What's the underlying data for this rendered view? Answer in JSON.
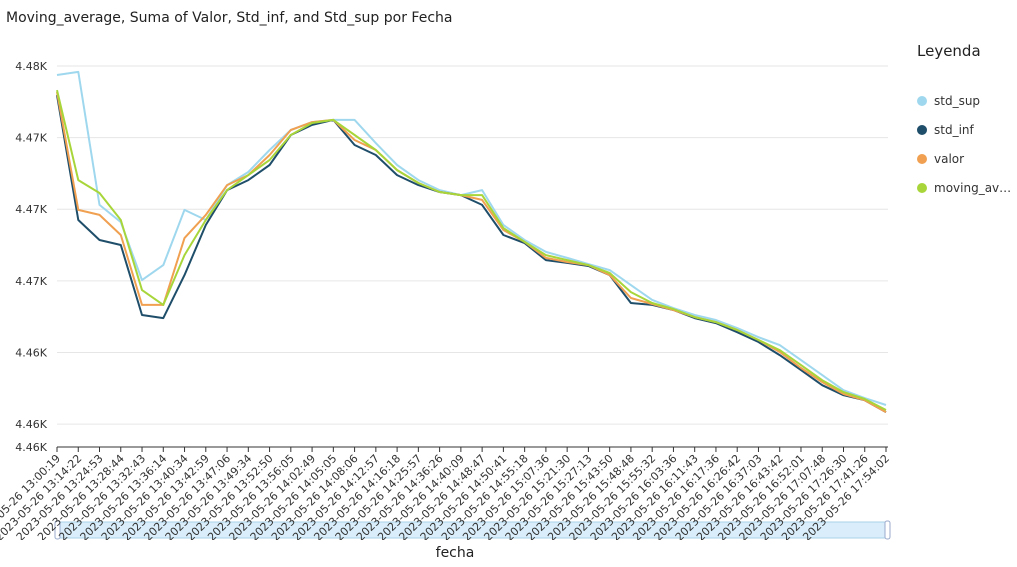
{
  "chart_data": {
    "type": "line",
    "title": "Moving_average, Suma of Valor, Std_inf, and Std_sup por Fecha",
    "legend_title": "Leyenda",
    "legend_position": "right",
    "xlabel": "fecha",
    "grid": true,
    "categories": [
      "2023-05-26 13:00:19",
      "2023-05-26 13:14:22",
      "2023-05-26 13:24:53",
      "2023-05-26 13:28:44",
      "2023-05-26 13:32:43",
      "2023-05-26 13:36:14",
      "2023-05-26 13:40:34",
      "2023-05-26 13:42:59",
      "2023-05-26 13:47:06",
      "2023-05-26 13:49:34",
      "2023-05-26 13:52:50",
      "2023-05-26 13:56:05",
      "2023-05-26 14:02:49",
      "2023-05-26 14:05:05",
      "2023-05-26 14:08:06",
      "2023-05-26 14:12:57",
      "2023-05-26 14:16:18",
      "2023-05-26 14:25:57",
      "2023-05-26 14:36:26",
      "2023-05-26 14:40:09",
      "2023-05-26 14:48:47",
      "2023-05-26 14:50:41",
      "2023-05-26 14:55:18",
      "2023-05-26 15:07:36",
      "2023-05-26 15:21:30",
      "2023-05-26 15:27:13",
      "2023-05-26 15:43:50",
      "2023-05-26 15:48:48",
      "2023-05-26 15:55:32",
      "2023-05-26 16:03:36",
      "2023-05-26 16:11:43",
      "2023-05-26 16:17:36",
      "2023-05-26 16:26:42",
      "2023-05-26 16:37:03",
      "2023-05-26 16:43:42",
      "2023-05-26 16:52:01",
      "2023-05-26 17:07:48",
      "2023-05-26 17:26:30",
      "2023-05-26 17:41:26",
      "2023-05-26 17:54:02"
    ],
    "ylim": [
      4460.04,
      4476.25
    ],
    "yticks": [
      {
        "value": 4460.04,
        "label": "4.46K"
      },
      {
        "value": 4461,
        "label": "4.46K"
      },
      {
        "value": 4464,
        "label": "4.46K"
      },
      {
        "value": 4467,
        "label": "4.47K"
      },
      {
        "value": 4470,
        "label": "4.47K"
      },
      {
        "value": 4473,
        "label": "4.47K"
      },
      {
        "value": 4476,
        "label": "4.48K"
      }
    ],
    "series": [
      {
        "name": "std_sup",
        "color": "#9fd8ee",
        "values": [
          4475.62,
          4475.75,
          4470.18,
          4469.46,
          4467.03,
          4467.66,
          4469.97,
          4469.55,
          4471.01,
          4471.56,
          4472.48,
          4473.32,
          4473.65,
          4473.74,
          4473.74,
          4472.77,
          4471.85,
          4471.22,
          4470.8,
          4470.59,
          4470.8,
          4469.34,
          4468.71,
          4468.21,
          4467.96,
          4467.7,
          4467.45,
          4466.82,
          4466.2,
          4465.86,
          4465.57,
          4465.36,
          4465.02,
          4464.64,
          4464.31,
          4463.68,
          4463.05,
          4462.42,
          4462.09,
          4461.8
        ]
      },
      {
        "name": "std_inf",
        "color": "#1f4e6a",
        "values": [
          4474.78,
          4469.55,
          4468.71,
          4468.5,
          4465.57,
          4465.44,
          4467.24,
          4469.34,
          4470.8,
          4471.22,
          4471.85,
          4473.11,
          4473.53,
          4473.74,
          4472.69,
          4472.27,
          4471.43,
          4471.01,
          4470.72,
          4470.59,
          4470.18,
          4468.92,
          4468.58,
          4467.87,
          4467.75,
          4467.62,
          4467.24,
          4466.07,
          4465.99,
          4465.78,
          4465.44,
          4465.23,
          4464.85,
          4464.44,
          4463.89,
          4463.26,
          4462.63,
          4462.21,
          4462.0,
          4461.5
        ]
      },
      {
        "name": "valor",
        "color": "#f0a050",
        "values": [
          4474.91,
          4469.97,
          4469.76,
          4468.92,
          4465.99,
          4465.99,
          4468.79,
          4469.76,
          4471.01,
          4471.43,
          4472.27,
          4473.32,
          4473.65,
          4473.74,
          4472.9,
          4472.48,
          4471.64,
          4471.1,
          4470.72,
          4470.59,
          4470.39,
          4469.13,
          4468.63,
          4467.96,
          4467.79,
          4467.66,
          4467.24,
          4466.28,
          4466.03,
          4465.78,
          4465.48,
          4465.27,
          4464.94,
          4464.52,
          4464.02,
          4463.35,
          4462.76,
          4462.26,
          4462.0,
          4461.5
        ]
      },
      {
        "name": "moving_average",
        "color": "#a8d63a",
        "values": [
          4474.99,
          4471.22,
          4470.68,
          4469.55,
          4466.61,
          4465.99,
          4468.08,
          4469.55,
          4470.8,
          4471.43,
          4472.06,
          4473.11,
          4473.61,
          4473.74,
          4473.11,
          4472.48,
          4471.64,
          4471.1,
          4470.72,
          4470.59,
          4470.59,
          4469.21,
          4468.63,
          4468.08,
          4467.87,
          4467.66,
          4467.33,
          4466.53,
          4466.07,
          4465.82,
          4465.48,
          4465.27,
          4464.94,
          4464.52,
          4464.1,
          4463.47,
          4462.84,
          4462.34,
          4462.05,
          4461.59
        ]
      }
    ]
  }
}
